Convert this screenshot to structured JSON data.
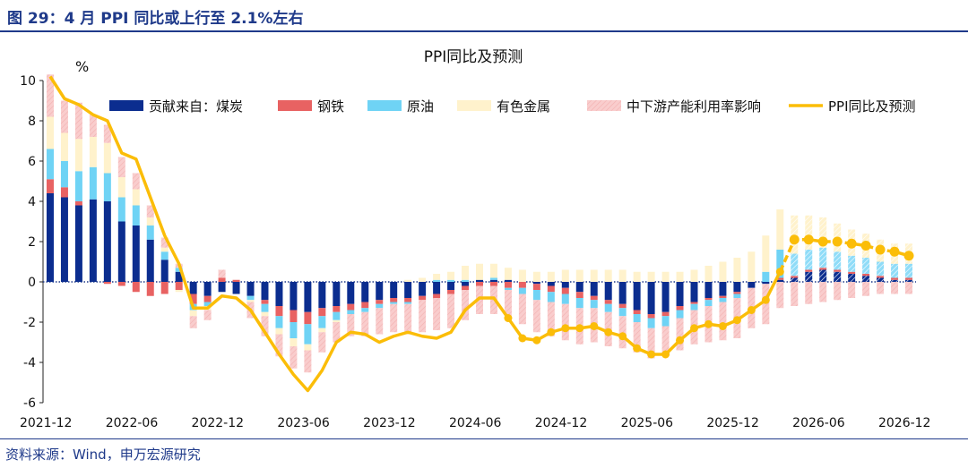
{
  "header": {
    "title": "图 29：4 月 PPI 同比或上行至 2.1%左右"
  },
  "footer": {
    "source": "资料来源：Wind，申万宏源研究"
  },
  "chart_data": {
    "type": "bar",
    "title": "PPI同比及预测",
    "ylabel": "%",
    "xlabel": "",
    "ylim": [
      -6,
      10
    ],
    "yticks": [
      -6,
      -4,
      -2,
      0,
      2,
      4,
      6,
      8,
      10
    ],
    "xtick_labels": [
      "2021-12",
      "2022-06",
      "2022-12",
      "2023-06",
      "2023-12",
      "2024-06",
      "2024-12",
      "2025-06",
      "2025-12",
      "2026-06",
      "2026-12"
    ],
    "categories": [
      "2021-12",
      "2022-01",
      "2022-02",
      "2022-03",
      "2022-04",
      "2022-05",
      "2022-06",
      "2022-07",
      "2022-08",
      "2022-09",
      "2022-10",
      "2022-11",
      "2022-12",
      "2023-01",
      "2023-02",
      "2023-03",
      "2023-04",
      "2023-05",
      "2023-06",
      "2023-07",
      "2023-08",
      "2023-09",
      "2023-10",
      "2023-11",
      "2023-12",
      "2024-01",
      "2024-02",
      "2024-03",
      "2024-04",
      "2024-05",
      "2024-06",
      "2024-07",
      "2024-08",
      "2024-09",
      "2024-10",
      "2024-11",
      "2024-12",
      "2025-01",
      "2025-02",
      "2025-03",
      "2025-04",
      "2025-05",
      "2025-06",
      "2025-07",
      "2025-08",
      "2025-09",
      "2025-10",
      "2025-11",
      "2025-12",
      "2026-01",
      "2026-02",
      "2026-03",
      "2026-04",
      "2026-05",
      "2026-06",
      "2026-07",
      "2026-08",
      "2026-09",
      "2026-10",
      "2026-11",
      "2026-12"
    ],
    "legend_position": "top",
    "grid": false,
    "series": [
      {
        "name": "贡献来自：煤炭",
        "kind": "bar",
        "color": "#0b2d8f",
        "values": [
          4.4,
          4.2,
          3.8,
          4.1,
          4.0,
          3.0,
          2.8,
          2.1,
          1.1,
          0.5,
          -0.6,
          -0.7,
          -0.5,
          -0.6,
          -0.7,
          -0.9,
          -1.2,
          -1.4,
          -1.5,
          -1.3,
          -1.2,
          -1.1,
          -1.0,
          -0.9,
          -0.8,
          -0.8,
          -0.7,
          -0.6,
          -0.4,
          -0.2,
          0.1,
          0.1,
          0.1,
          0.0,
          -0.1,
          -0.2,
          -0.3,
          -0.5,
          -0.7,
          -0.9,
          -1.1,
          -1.4,
          -1.6,
          -1.5,
          -1.2,
          -1.0,
          -0.8,
          -0.7,
          -0.5,
          -0.3,
          -0.1,
          0.1,
          0.2,
          0.5,
          0.6,
          0.5,
          0.4,
          0.3,
          0.2,
          0.1,
          0.1
        ]
      },
      {
        "name": "钢铁",
        "kind": "bar",
        "color": "#e86262",
        "values": [
          0.7,
          0.5,
          0.2,
          0.0,
          -0.1,
          -0.2,
          -0.5,
          -0.7,
          -0.6,
          -0.4,
          -0.5,
          -0.3,
          0.2,
          0.1,
          0.0,
          -0.2,
          -0.5,
          -0.6,
          -0.6,
          -0.4,
          -0.3,
          -0.3,
          -0.3,
          -0.2,
          -0.2,
          -0.2,
          -0.2,
          -0.2,
          -0.2,
          -0.2,
          -0.2,
          -0.2,
          -0.3,
          -0.3,
          -0.3,
          -0.3,
          -0.3,
          -0.3,
          -0.2,
          -0.2,
          -0.2,
          -0.2,
          -0.2,
          -0.2,
          -0.2,
          -0.1,
          -0.1,
          -0.1,
          -0.1,
          0.0,
          0.0,
          0.1,
          0.1,
          0.1,
          0.1,
          0.1,
          0.1,
          0.1,
          0.1,
          0.1,
          0.1
        ]
      },
      {
        "name": "原油",
        "kind": "bar",
        "color": "#6fd3f5",
        "values": [
          1.5,
          1.3,
          1.5,
          1.6,
          1.4,
          1.2,
          1.0,
          0.7,
          0.4,
          0.2,
          -0.3,
          -0.2,
          0.0,
          0.0,
          -0.2,
          -0.4,
          -0.6,
          -0.8,
          -1.0,
          -0.6,
          -0.4,
          -0.2,
          -0.2,
          -0.2,
          -0.1,
          -0.1,
          0.0,
          0.1,
          0.1,
          0.1,
          0.0,
          0.1,
          -0.1,
          -0.3,
          -0.5,
          -0.5,
          -0.5,
          -0.5,
          -0.4,
          -0.4,
          -0.4,
          -0.4,
          -0.5,
          -0.5,
          -0.4,
          -0.3,
          -0.3,
          -0.2,
          -0.2,
          0.0,
          0.5,
          1.4,
          1.1,
          1.0,
          1.0,
          0.9,
          0.8,
          0.8,
          0.7,
          0.7,
          0.7
        ]
      },
      {
        "name": "有色金属",
        "kind": "bar",
        "color": "#fff2cc",
        "values": [
          1.6,
          1.4,
          1.6,
          1.5,
          1.5,
          1.0,
          0.8,
          0.4,
          0.2,
          -0.1,
          -0.3,
          -0.2,
          0.0,
          0.0,
          -0.1,
          -0.2,
          -0.3,
          -0.4,
          -0.3,
          -0.2,
          -0.1,
          0.0,
          0.0,
          0.0,
          0.0,
          0.1,
          0.2,
          0.3,
          0.4,
          0.7,
          0.8,
          0.7,
          0.6,
          0.6,
          0.5,
          0.5,
          0.6,
          0.6,
          0.6,
          0.6,
          0.6,
          0.5,
          0.5,
          0.5,
          0.5,
          0.6,
          0.8,
          1.0,
          1.2,
          1.5,
          1.8,
          2.0,
          1.9,
          1.7,
          1.5,
          1.4,
          1.3,
          1.2,
          1.1,
          1.0,
          1.0
        ]
      },
      {
        "name": "中下游产能利用率影响",
        "kind": "bar",
        "color": "#f9cdcd",
        "hatched": true,
        "values": [
          2.1,
          1.6,
          1.8,
          1.1,
          0.9,
          1.0,
          0.8,
          0.6,
          0.5,
          0.2,
          -0.6,
          -0.5,
          0.4,
          0.0,
          -0.8,
          -1.0,
          -1.1,
          -1.1,
          -1.1,
          -1.0,
          -1.0,
          -1.1,
          -1.2,
          -1.3,
          -1.4,
          -1.5,
          -1.6,
          -1.6,
          -1.7,
          -1.5,
          -1.4,
          -1.4,
          -1.4,
          -1.5,
          -1.6,
          -1.7,
          -1.8,
          -1.8,
          -1.7,
          -1.7,
          -1.6,
          -1.5,
          -1.5,
          -1.5,
          -1.6,
          -1.7,
          -1.8,
          -1.9,
          -2.0,
          -2.0,
          -2.0,
          -1.3,
          -1.2,
          -1.1,
          -1.0,
          -0.9,
          -0.8,
          -0.7,
          -0.6,
          -0.6,
          -0.6
        ]
      },
      {
        "name": "PPI同比及预测",
        "kind": "line",
        "color": "#fbbd08",
        "values": [
          10.2,
          9.1,
          8.8,
          8.3,
          8.0,
          6.4,
          6.1,
          4.2,
          2.3,
          0.9,
          -1.3,
          -1.3,
          -0.7,
          -0.8,
          -1.4,
          -2.5,
          -3.6,
          -4.6,
          -5.4,
          -4.4,
          -3.0,
          -2.5,
          -2.6,
          -3.0,
          -2.7,
          -2.5,
          -2.7,
          -2.8,
          -2.5,
          -1.4,
          -0.8,
          -0.8,
          -1.8,
          -2.8,
          -2.9,
          -2.5,
          -2.3,
          -2.3,
          -2.2,
          -2.5,
          -2.7,
          -3.3,
          -3.6,
          -3.6,
          -2.9,
          -2.3,
          -2.1,
          -2.2,
          -1.9,
          -1.4,
          -0.9,
          0.5,
          2.1,
          2.1,
          2.0,
          2.0,
          1.9,
          1.8,
          1.6,
          1.5,
          1.3
        ],
        "forecast_from": "2026-04"
      }
    ]
  }
}
